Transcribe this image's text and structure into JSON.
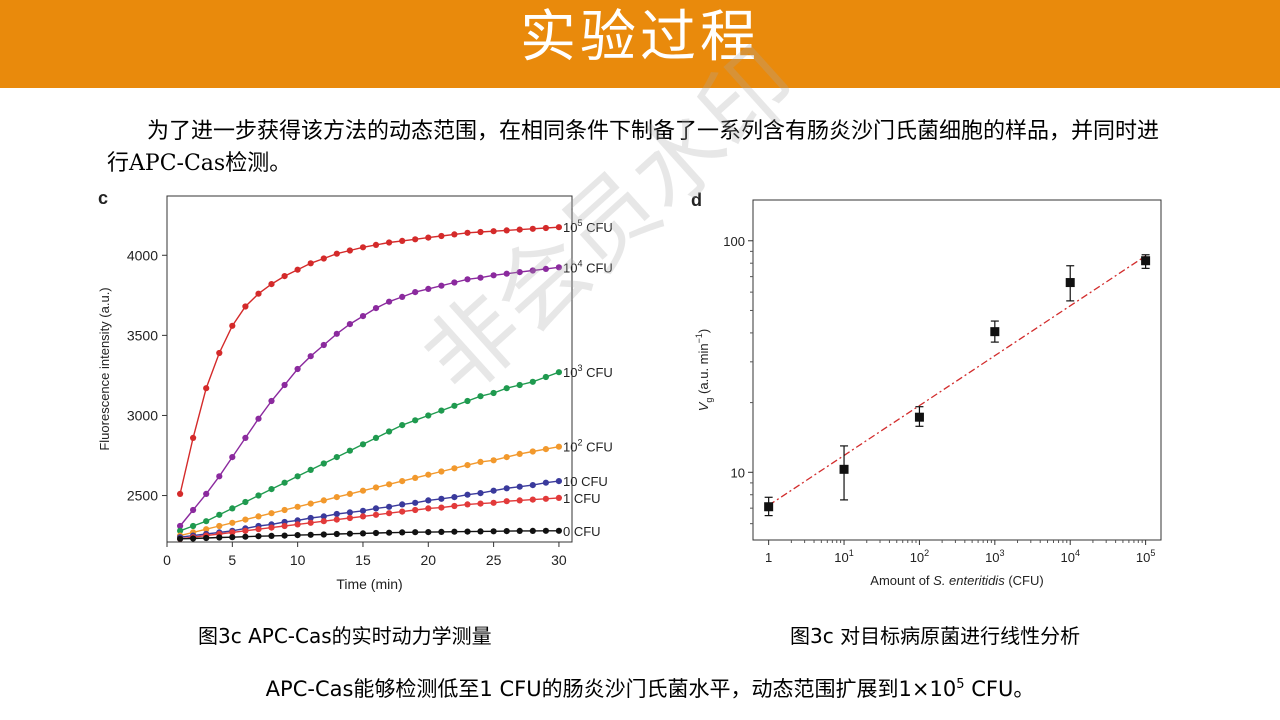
{
  "header": {
    "title": "实验过程",
    "bg_color": "#e98a0c"
  },
  "intro_text": "为了进一步获得该方法的动态范围，在相同条件下制备了一系列含有肠炎沙门氏菌细胞的样品，并同时进行APC-Cas检测。",
  "watermark": "非会员水印",
  "captions": {
    "left": "图3c  APC-Cas的实时动力学测量",
    "right": "图3c  对目标病原菌进行线性分析"
  },
  "conclusion": {
    "before": "APC-Cas能够检测低至1 CFU的肠炎沙门氏菌水平，动态范围扩展到1×10",
    "sup": "5",
    "after": " CFU。"
  },
  "chart_data": [
    {
      "panel_label": "c",
      "type": "line",
      "xlabel": "Time (min)",
      "ylabel": "Fluorescence intensity (a.u.)",
      "xlim": [
        0,
        31
      ],
      "ylim": [
        2210,
        4370
      ],
      "x_ticks": [
        0,
        5,
        10,
        15,
        20,
        25,
        30
      ],
      "y_ticks": [
        2500,
        3000,
        3500,
        4000
      ],
      "x": [
        1,
        2,
        3,
        4,
        5,
        6,
        7,
        8,
        9,
        10,
        11,
        12,
        13,
        14,
        15,
        16,
        17,
        18,
        19,
        20,
        21,
        22,
        23,
        24,
        25,
        26,
        27,
        28,
        29,
        30
      ],
      "series": [
        {
          "name": "10^5 CFU",
          "label_base": "10",
          "label_sup": "5",
          "label_unit": " CFU",
          "color": "#d42a2a",
          "values": [
            2510,
            2860,
            3170,
            3390,
            3560,
            3680,
            3760,
            3820,
            3870,
            3910,
            3950,
            3980,
            4010,
            4030,
            4050,
            4065,
            4080,
            4090,
            4100,
            4110,
            4120,
            4130,
            4140,
            4145,
            4150,
            4155,
            4160,
            4165,
            4170,
            4175
          ]
        },
        {
          "name": "10^4 CFU",
          "label_base": "10",
          "label_sup": "4",
          "label_unit": " CFU",
          "color": "#8b2a9e",
          "values": [
            2310,
            2410,
            2510,
            2620,
            2740,
            2860,
            2980,
            3090,
            3190,
            3290,
            3370,
            3440,
            3510,
            3570,
            3620,
            3670,
            3710,
            3740,
            3770,
            3790,
            3810,
            3830,
            3850,
            3860,
            3875,
            3885,
            3895,
            3905,
            3915,
            3925
          ]
        },
        {
          "name": "10^3 CFU",
          "label_base": "10",
          "label_sup": "3",
          "label_unit": " CFU",
          "color": "#1f9a4f",
          "values": [
            2280,
            2310,
            2340,
            2380,
            2420,
            2460,
            2500,
            2540,
            2580,
            2620,
            2660,
            2700,
            2740,
            2780,
            2820,
            2860,
            2900,
            2940,
            2970,
            3000,
            3030,
            3060,
            3090,
            3120,
            3140,
            3170,
            3190,
            3210,
            3240,
            3270
          ]
        },
        {
          "name": "10^2 CFU",
          "label_base": "10",
          "label_sup": "2",
          "label_unit": " CFU",
          "color": "#f2992d",
          "values": [
            2250,
            2270,
            2290,
            2310,
            2330,
            2350,
            2370,
            2390,
            2410,
            2430,
            2450,
            2470,
            2490,
            2510,
            2530,
            2550,
            2570,
            2590,
            2610,
            2630,
            2650,
            2670,
            2690,
            2710,
            2720,
            2740,
            2760,
            2775,
            2790,
            2805
          ]
        },
        {
          "name": "10 CFU",
          "label_base": "10",
          "label_sup": "",
          "label_unit": " CFU",
          "color": "#3a3a9c",
          "values": [
            2240,
            2250,
            2260,
            2270,
            2280,
            2295,
            2310,
            2320,
            2335,
            2345,
            2360,
            2370,
            2385,
            2395,
            2405,
            2420,
            2430,
            2445,
            2455,
            2470,
            2480,
            2490,
            2505,
            2515,
            2530,
            2545,
            2555,
            2565,
            2580,
            2590
          ]
        },
        {
          "name": "1 CFU",
          "label_base": "1",
          "label_sup": "",
          "label_unit": " CFU",
          "color": "#e23a3a",
          "values": [
            2230,
            2240,
            2250,
            2260,
            2270,
            2280,
            2290,
            2300,
            2310,
            2320,
            2330,
            2340,
            2350,
            2360,
            2370,
            2380,
            2390,
            2400,
            2410,
            2420,
            2425,
            2435,
            2445,
            2450,
            2455,
            2465,
            2470,
            2475,
            2480,
            2485
          ]
        },
        {
          "name": "0 CFU",
          "label_base": "0",
          "label_sup": "",
          "label_unit": " CFU",
          "color": "#111111",
          "values": [
            2230,
            2232,
            2235,
            2238,
            2240,
            2243,
            2246,
            2248,
            2250,
            2253,
            2255,
            2257,
            2260,
            2262,
            2264,
            2266,
            2268,
            2270,
            2271,
            2272,
            2273,
            2274,
            2275,
            2276,
            2277,
            2278,
            2279,
            2279,
            2280,
            2280
          ]
        }
      ]
    },
    {
      "panel_label": "d",
      "type": "scatter",
      "log_x": true,
      "log_y": true,
      "xlabel_prefix": "Amount of ",
      "xlabel_italic": "S. enteritidis",
      "xlabel_suffix": " (CFU)",
      "ylabel_main": "V",
      "ylabel_sub": "g",
      "ylabel_unit": " (a.u. min",
      "ylabel_sup": "−1",
      "ylabel_close": ")",
      "xlim": [
        0.62,
        160000
      ],
      "ylim": [
        5.1,
        150
      ],
      "x_ticks": [
        {
          "value": 1,
          "base": "1",
          "sup": ""
        },
        {
          "value": 10,
          "base": "10",
          "sup": "1"
        },
        {
          "value": 100,
          "base": "10",
          "sup": "2"
        },
        {
          "value": 1000,
          "base": "10",
          "sup": "3"
        },
        {
          "value": 10000,
          "base": "10",
          "sup": "4"
        },
        {
          "value": 100000,
          "base": "10",
          "sup": "5"
        }
      ],
      "y_ticks": [
        {
          "value": 10,
          "label": "10"
        },
        {
          "value": 100,
          "label": "100"
        }
      ],
      "points": [
        {
          "x": 1,
          "y": 7.1,
          "err_low": 6.5,
          "err_high": 7.8
        },
        {
          "x": 10,
          "y": 10.3,
          "err_low": 7.6,
          "err_high": 13.0
        },
        {
          "x": 100,
          "y": 17.3,
          "err_low": 15.8,
          "err_high": 19.2
        },
        {
          "x": 1000,
          "y": 40.5,
          "err_low": 36.5,
          "err_high": 45.0
        },
        {
          "x": 10000,
          "y": 66,
          "err_low": 55,
          "err_high": 78
        },
        {
          "x": 100000,
          "y": 82,
          "err_low": 76,
          "err_high": 87
        }
      ],
      "fit_line": {
        "x": [
          1,
          100000
        ],
        "y": [
          7.2,
          86
        ],
        "color": "#d22c2c",
        "style": "dash-dot"
      }
    }
  ]
}
